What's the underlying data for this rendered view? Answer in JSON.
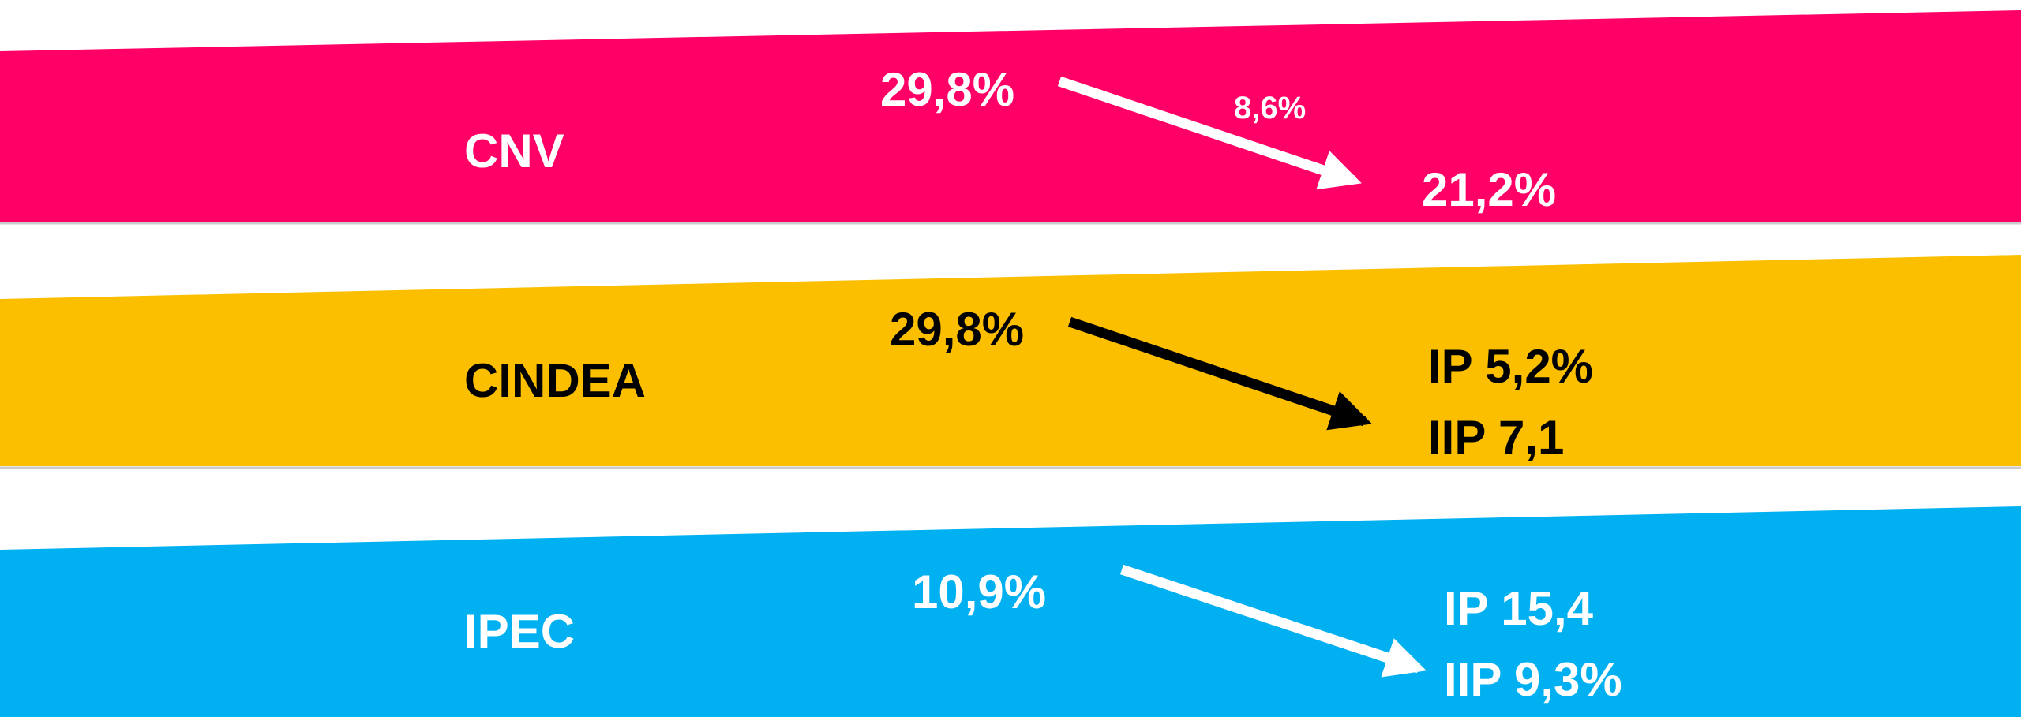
{
  "rows": [
    {
      "label": "CNV",
      "from": "29,8%",
      "change": "8,6%",
      "to": [
        "21,2%"
      ]
    },
    {
      "label": "CINDEA",
      "from": "29,8%",
      "to": [
        "IP 5,2%",
        "IIP 7,1"
      ]
    },
    {
      "label": "IPEC",
      "from": "10,9%",
      "to": [
        "IP 15,4",
        "IIP 9,3%"
      ]
    }
  ]
}
